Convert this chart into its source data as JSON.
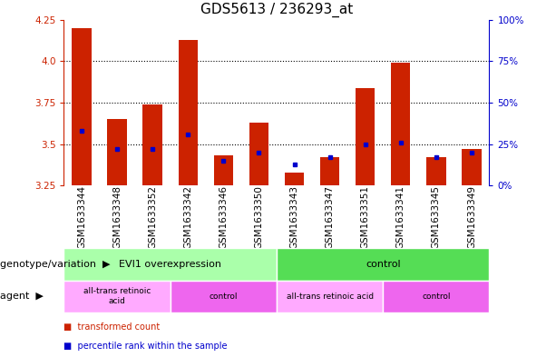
{
  "title": "GDS5613 / 236293_at",
  "samples": [
    "GSM1633344",
    "GSM1633348",
    "GSM1633352",
    "GSM1633342",
    "GSM1633346",
    "GSM1633350",
    "GSM1633343",
    "GSM1633347",
    "GSM1633351",
    "GSM1633341",
    "GSM1633345",
    "GSM1633349"
  ],
  "bar_tops": [
    4.2,
    3.65,
    3.74,
    4.13,
    3.43,
    3.63,
    3.33,
    3.42,
    3.84,
    3.99,
    3.42,
    3.47
  ],
  "bar_base": 3.25,
  "blue_dots": [
    3.58,
    3.47,
    3.47,
    3.56,
    3.4,
    3.45,
    3.38,
    3.42,
    3.5,
    3.51,
    3.42,
    3.45
  ],
  "ylim": [
    3.25,
    4.25
  ],
  "yticks_left": [
    3.25,
    3.5,
    3.75,
    4.0,
    4.25
  ],
  "yticks_right_vals": [
    0,
    25,
    50,
    75,
    100
  ],
  "yticks_right_pos": [
    3.25,
    3.5,
    3.75,
    4.0,
    4.25
  ],
  "bar_color": "#cc2200",
  "dot_color": "#0000cc",
  "bg_plot": "#ffffff",
  "bg_fig": "#ffffff",
  "xtick_bg": "#cccccc",
  "dotted_line_y": [
    3.5,
    3.75,
    4.0
  ],
  "genotype_groups": [
    {
      "text": "EVI1 overexpression",
      "start": 0,
      "end": 5,
      "color": "#aaffaa"
    },
    {
      "text": "control",
      "start": 6,
      "end": 11,
      "color": "#55dd55"
    }
  ],
  "agent_groups": [
    {
      "text": "all-trans retinoic\nacid",
      "start": 0,
      "end": 2,
      "color": "#ffaaff"
    },
    {
      "text": "control",
      "start": 3,
      "end": 5,
      "color": "#ee66ee"
    },
    {
      "text": "all-trans retinoic acid",
      "start": 6,
      "end": 8,
      "color": "#ffaaff"
    },
    {
      "text": "control",
      "start": 9,
      "end": 11,
      "color": "#ee66ee"
    }
  ],
  "legend_items": [
    {
      "color": "#cc2200",
      "label": "transformed count"
    },
    {
      "color": "#0000cc",
      "label": "percentile rank within the sample"
    }
  ],
  "title_fontsize": 11,
  "tick_fontsize": 7.5,
  "annot_fontsize": 8,
  "label_fontsize": 8
}
